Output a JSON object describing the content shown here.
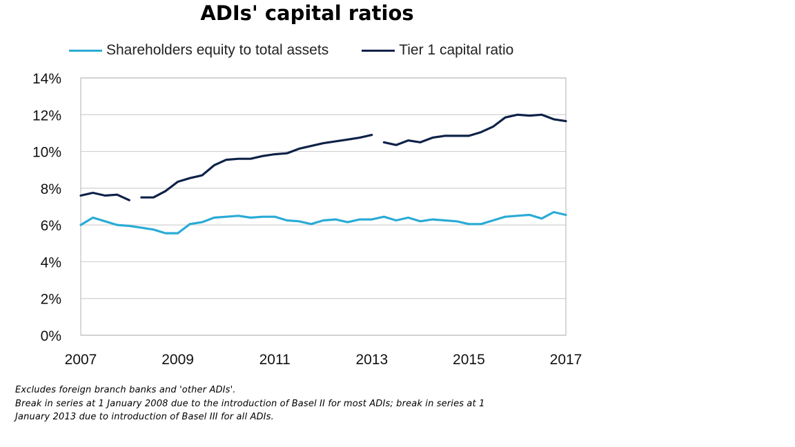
{
  "chart_data": {
    "type": "line",
    "title": "ADIs' capital ratios",
    "xlabel": "",
    "ylabel": "",
    "xlim": [
      2007,
      2017
    ],
    "ylim": [
      0,
      14
    ],
    "x_ticks": [
      "2007",
      "2009",
      "2011",
      "2013",
      "2015",
      "2017"
    ],
    "y_ticks": [
      "0%",
      "2%",
      "4%",
      "6%",
      "8%",
      "10%",
      "12%",
      "14%"
    ],
    "grid": "horizontal",
    "legend_position": "top",
    "series": [
      {
        "name": "Shareholders equity to total assets",
        "color": "#29ABD6",
        "x": [
          2007.0,
          2007.25,
          2007.5,
          2007.75,
          2008.0,
          2008.25,
          2008.5,
          2008.75,
          2009.0,
          2009.25,
          2009.5,
          2009.75,
          2010.0,
          2010.25,
          2010.5,
          2010.75,
          2011.0,
          2011.25,
          2011.5,
          2011.75,
          2012.0,
          2012.25,
          2012.5,
          2012.75,
          2013.0,
          2013.25,
          2013.5,
          2013.75,
          2014.0,
          2014.25,
          2014.5,
          2014.75,
          2015.0,
          2015.25,
          2015.5,
          2015.75,
          2016.0,
          2016.25,
          2016.5,
          2016.75,
          2017.0
        ],
        "values": [
          6.0,
          6.4,
          6.2,
          6.0,
          5.95,
          5.85,
          5.75,
          5.55,
          5.55,
          6.05,
          6.15,
          6.4,
          6.45,
          6.5,
          6.4,
          6.45,
          6.45,
          6.25,
          6.2,
          6.05,
          6.25,
          6.3,
          6.15,
          6.3,
          6.3,
          6.45,
          6.25,
          6.4,
          6.2,
          6.3,
          6.25,
          6.2,
          6.05,
          6.05,
          6.25,
          6.45,
          6.5,
          6.55,
          6.35,
          6.7,
          6.55
        ]
      },
      {
        "name": "Tier 1 capital ratio",
        "color": "#0E2148",
        "segments": [
          {
            "x": [
              2007.0,
              2007.25,
              2007.5,
              2007.75,
              2008.0
            ],
            "values": [
              7.6,
              7.75,
              7.6,
              7.65,
              7.35
            ]
          },
          {
            "x": [
              2008.25,
              2008.5,
              2008.75,
              2009.0,
              2009.25,
              2009.5,
              2009.75,
              2010.0,
              2010.25,
              2010.5,
              2010.75,
              2011.0,
              2011.25,
              2011.5,
              2011.75,
              2012.0,
              2012.25,
              2012.5,
              2012.75,
              2013.0
            ],
            "values": [
              7.5,
              7.5,
              7.85,
              8.35,
              8.55,
              8.7,
              9.25,
              9.55,
              9.6,
              9.6,
              9.75,
              9.85,
              9.9,
              10.15,
              10.3,
              10.45,
              10.55,
              10.65,
              10.75,
              10.9
            ]
          },
          {
            "x": [
              2013.25,
              2013.5,
              2013.75,
              2014.0,
              2014.25,
              2014.5,
              2014.75,
              2015.0,
              2015.25,
              2015.5,
              2015.75,
              2016.0,
              2016.25,
              2016.5,
              2016.75,
              2017.0
            ],
            "values": [
              10.5,
              10.35,
              10.6,
              10.5,
              10.75,
              10.85,
              10.85,
              10.85,
              11.05,
              11.35,
              11.85,
              12.0,
              11.95,
              12.0,
              11.75,
              11.65
            ]
          }
        ]
      }
    ],
    "notes": [
      "Excludes foreign branch banks and 'other ADIs'.",
      "Break in series at 1 January 2008 due to the introduction of Basel II for most ADIs; break in series at 1",
      "January 2013 due to introduction of Basel III for all ADIs."
    ]
  }
}
